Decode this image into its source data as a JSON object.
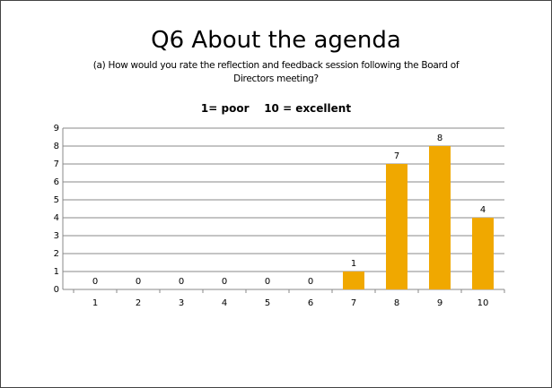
{
  "chart_data": {
    "type": "bar",
    "title": "Q6 About the agenda",
    "subtitle": "(a) How would you rate the reflection and feedback session following the Board of Directors meeting?",
    "annotation": "1= poor    10 = excellent",
    "categories": [
      "1",
      "2",
      "3",
      "4",
      "5",
      "6",
      "7",
      "8",
      "9",
      "10"
    ],
    "values": [
      0,
      0,
      0,
      0,
      0,
      0,
      1,
      7,
      8,
      4
    ],
    "color": "#f0a800",
    "ylim": [
      0,
      9
    ],
    "yticks": [
      0,
      1,
      2,
      3,
      4,
      5,
      6,
      7,
      8,
      9
    ],
    "grid": true
  }
}
